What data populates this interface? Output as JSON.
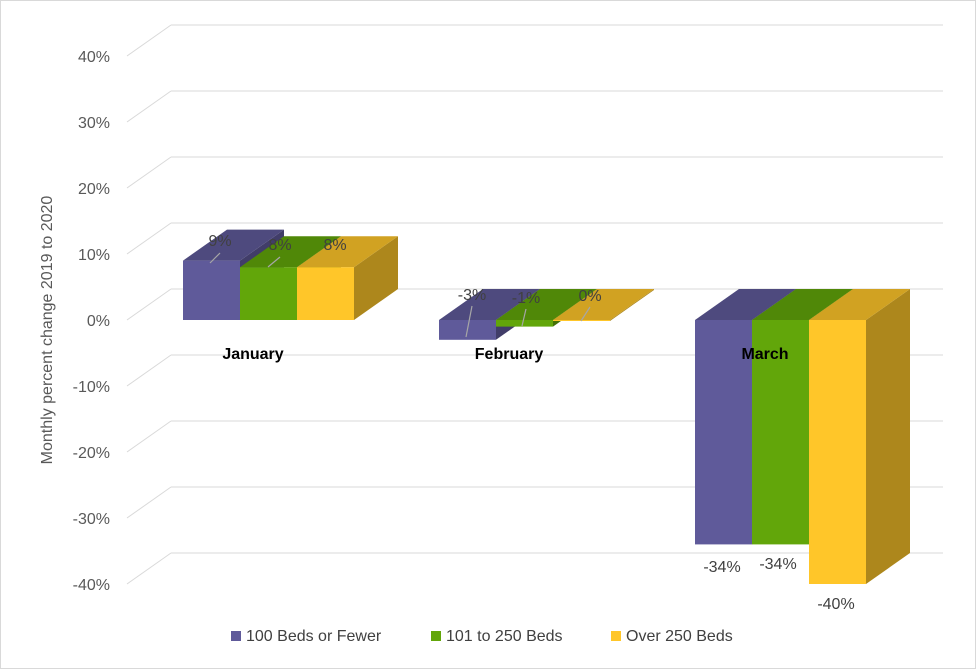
{
  "chart_data": {
    "type": "bar",
    "ylabel": "Monthly percent change 2019 to 2020",
    "ylim": [
      -40,
      40
    ],
    "y_ticks": [
      "40%",
      "30%",
      "20%",
      "10%",
      "0%",
      "-10%",
      "-20%",
      "-30%",
      "-40%"
    ],
    "y_tick_values": [
      40,
      30,
      20,
      10,
      0,
      -10,
      -20,
      -30,
      -40
    ],
    "categories": [
      "January",
      "February",
      "March"
    ],
    "series": [
      {
        "name": "100 Beds or Fewer",
        "values": [
          9,
          -3,
          -34
        ],
        "labels": [
          "9%",
          "-3%",
          "-34%"
        ],
        "color": "#5f5a9a"
      },
      {
        "name": "101 to 250 Beds",
        "values": [
          8,
          -1,
          -34
        ],
        "labels": [
          "8%",
          "-1%",
          "-34%"
        ],
        "color": "#62a60a"
      },
      {
        "name": "Over 250 Beds",
        "values": [
          8,
          0,
          -40
        ],
        "labels": [
          "8%",
          "0%",
          "-40%"
        ],
        "color": "#ffc629"
      }
    ],
    "grid": true,
    "legend_position": "bottom",
    "style": "3d-clustered-column"
  }
}
